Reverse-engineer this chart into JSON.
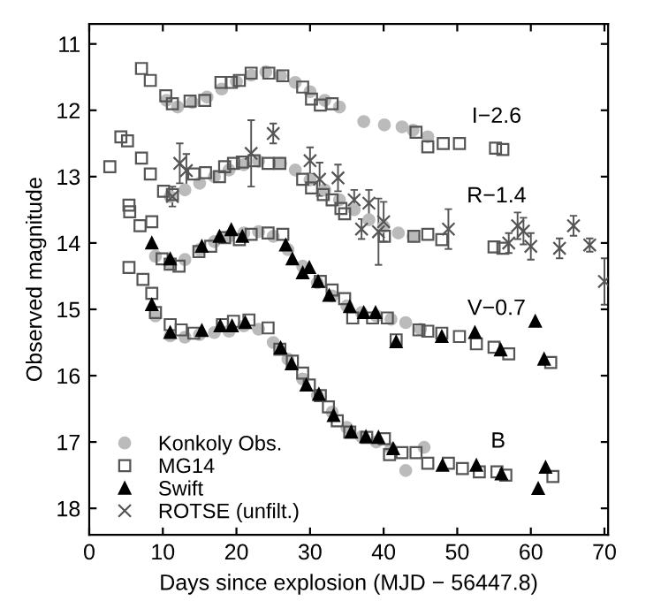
{
  "chart_data": {
    "type": "scatter",
    "xlabel": "Days since explosion (MJD − 56447.8)",
    "ylabel": "Observed magnitude",
    "xlim": [
      0,
      70.5
    ],
    "ylim": [
      18.4,
      10.7
    ],
    "xticks": [
      0,
      10,
      20,
      30,
      40,
      50,
      60,
      70
    ],
    "yticks": [
      11,
      12,
      13,
      14,
      15,
      16,
      17,
      18
    ],
    "grid": false,
    "legend": "bottom left",
    "annotations": [
      "I−2.6",
      "R−1.4",
      "V−0.7",
      "B"
    ],
    "series": [
      {
        "name": "Konkoly Obs.",
        "color": "#bbbbbb",
        "marker": "circle",
        "x": [
          10.5,
          12,
          14,
          16,
          18,
          20,
          22,
          24,
          26,
          28,
          30,
          32,
          34,
          37.3,
          40.1,
          42.5,
          44,
          46,
          11,
          13,
          15,
          17,
          19,
          21,
          23,
          26,
          28,
          30,
          32,
          34,
          36,
          38,
          40,
          42,
          44,
          9,
          11,
          13,
          15,
          17,
          19,
          21,
          23,
          25,
          27,
          29,
          31,
          33,
          35,
          37,
          39,
          41,
          43,
          45,
          9,
          11,
          13,
          15,
          17,
          19,
          21,
          23,
          25,
          27,
          29,
          31,
          33,
          35,
          37,
          39,
          41,
          43,
          45.5
        ],
        "values": [
          11.85,
          11.95,
          11.88,
          11.8,
          11.68,
          11.57,
          11.47,
          11.42,
          11.48,
          11.58,
          11.72,
          11.85,
          11.95,
          12.17,
          12.22,
          12.25,
          12.3,
          12.4,
          13.3,
          13.2,
          13.1,
          13.0,
          12.9,
          12.82,
          12.77,
          12.8,
          12.9,
          13.05,
          13.2,
          13.35,
          13.5,
          13.65,
          13.75,
          13.85,
          13.9,
          14.2,
          14.3,
          14.25,
          14.1,
          13.98,
          13.9,
          13.85,
          13.83,
          13.9,
          14.1,
          14.35,
          14.6,
          14.8,
          14.95,
          15.05,
          15.1,
          15.15,
          15.2,
          15.3,
          15.1,
          15.4,
          15.42,
          15.38,
          15.35,
          15.33,
          15.25,
          15.3,
          15.5,
          15.75,
          16.05,
          16.3,
          16.55,
          16.78,
          16.92,
          17.0,
          17.1,
          17.43,
          17.08
        ]
      },
      {
        "name": "MG14",
        "color": "#555555",
        "marker": "square",
        "x": [
          7.1,
          8.3,
          10.4,
          11.3,
          13.7,
          15.7,
          17.9,
          19.3,
          20.4,
          22,
          24.4,
          26.3,
          29,
          30.2,
          31.4,
          33,
          44.4,
          46,
          48.1,
          50.3,
          55.2,
          56.2,
          2.8,
          4.3,
          5.2,
          7.1,
          8.3,
          10.1,
          11.3,
          14.2,
          15.8,
          17.7,
          18.4,
          19.6,
          20.8,
          22.4,
          24.3,
          25.9,
          29,
          30.2,
          31.8,
          33,
          34.2,
          34.7,
          40.1,
          44.1,
          46,
          47.9,
          55,
          56.2,
          5.4,
          5.5,
          6.9,
          8.5,
          9.9,
          11,
          12.2,
          14.9,
          16.5,
          18.4,
          20.4,
          22,
          24.3,
          26.3,
          31.4,
          33,
          34.7,
          35.8,
          38.5,
          40.5,
          41.7,
          44.8,
          46,
          47.9,
          50.3,
          52.6,
          55,
          57,
          62.7,
          5.4,
          7.3,
          8.5,
          9,
          11,
          12.5,
          14.2,
          18.1,
          19.6,
          21.7,
          24.3,
          25.9,
          27.6,
          29,
          29.9,
          31.4,
          32.5,
          33.7,
          35.4,
          37.7,
          40.1,
          40.8,
          42.5,
          44.4,
          46,
          48.8,
          50.7,
          53,
          55.4,
          56.6,
          63
        ],
        "values": [
          11.37,
          11.55,
          11.78,
          11.9,
          11.86,
          11.85,
          11.58,
          11.58,
          11.55,
          11.44,
          11.44,
          11.48,
          11.65,
          11.83,
          11.92,
          11.9,
          12.33,
          12.55,
          12.5,
          12.5,
          12.57,
          12.59,
          12.85,
          12.4,
          12.46,
          12.72,
          12.96,
          13.22,
          13.27,
          12.96,
          12.94,
          13.0,
          12.85,
          12.8,
          12.78,
          12.76,
          12.8,
          12.8,
          13.04,
          13.17,
          13.27,
          13.35,
          13.48,
          13.56,
          13.9,
          13.9,
          13.87,
          13.95,
          14.06,
          14.08,
          13.43,
          13.53,
          13.74,
          13.68,
          14.24,
          14.32,
          14.35,
          14.13,
          14.05,
          13.92,
          13.95,
          13.87,
          13.85,
          13.87,
          14.58,
          14.71,
          14.84,
          15.13,
          15.13,
          15.13,
          15.46,
          15.31,
          15.33,
          15.36,
          15.41,
          15.52,
          15.57,
          15.67,
          15.8,
          14.37,
          14.55,
          14.76,
          15.05,
          15.23,
          15.31,
          15.36,
          15.23,
          15.18,
          15.16,
          15.28,
          15.6,
          15.78,
          15.96,
          16.14,
          16.3,
          16.47,
          16.68,
          16.85,
          16.93,
          16.95,
          17.19,
          17.16,
          17.16,
          17.32,
          17.32,
          17.4,
          17.45,
          17.45,
          17.5,
          17.52
        ]
      },
      {
        "name": "Swift",
        "color": "#000000",
        "marker": "triangle",
        "x": [
          8.5,
          11,
          15.3,
          17.7,
          19.3,
          20.8,
          26.7,
          27.6,
          29,
          29.9,
          31.1,
          32.6,
          35.4,
          37.3,
          38.9,
          41.7,
          47.9,
          52.4,
          55.9,
          60.6,
          61.8,
          8.5,
          11,
          15.3,
          17.8,
          19.4,
          21.2,
          26,
          27.5,
          29.5,
          31.2,
          33.2,
          35.6,
          37.6,
          39.3,
          41.3,
          48,
          52.6,
          56,
          61,
          62
        ],
        "values": [
          14.0,
          14.24,
          14.05,
          13.9,
          13.8,
          13.9,
          14.03,
          14.24,
          14.45,
          14.37,
          14.58,
          14.79,
          14.96,
          15.05,
          15.05,
          15.49,
          15.41,
          15.35,
          15.61,
          15.18,
          15.75,
          14.93,
          15.35,
          15.32,
          15.25,
          15.25,
          15.2,
          15.58,
          15.82,
          16.14,
          16.28,
          16.6,
          16.85,
          16.92,
          16.93,
          17.1,
          17.35,
          17.35,
          17.48,
          17.7,
          17.38
        ]
      },
      {
        "name": "ROTSE (unfilt.)",
        "color": "#555555",
        "marker": "cross",
        "x": [
          11.3,
          12.3,
          13.2,
          22,
          25,
          30,
          31.3,
          33.8,
          36,
          37,
          38,
          39.3,
          40,
          48.8,
          57,
          58.2,
          59,
          60,
          63.9,
          65.8,
          68,
          70
        ],
        "values": [
          13.3,
          12.8,
          12.91,
          12.65,
          12.35,
          12.76,
          13.04,
          13.02,
          13.35,
          13.79,
          13.4,
          13.83,
          13.68,
          13.79,
          14.0,
          13.74,
          13.82,
          14.05,
          14.08,
          13.74,
          14.03,
          14.58
        ],
        "errors": [
          0.15,
          0.3,
          0.25,
          0.5,
          0.15,
          0.2,
          0.25,
          0.2,
          0.15,
          0.15,
          0.2,
          0.5,
          0.3,
          0.3,
          0.15,
          0.2,
          0.2,
          0.2,
          0.15,
          0.15,
          0.1,
          0.35
        ]
      }
    ]
  }
}
